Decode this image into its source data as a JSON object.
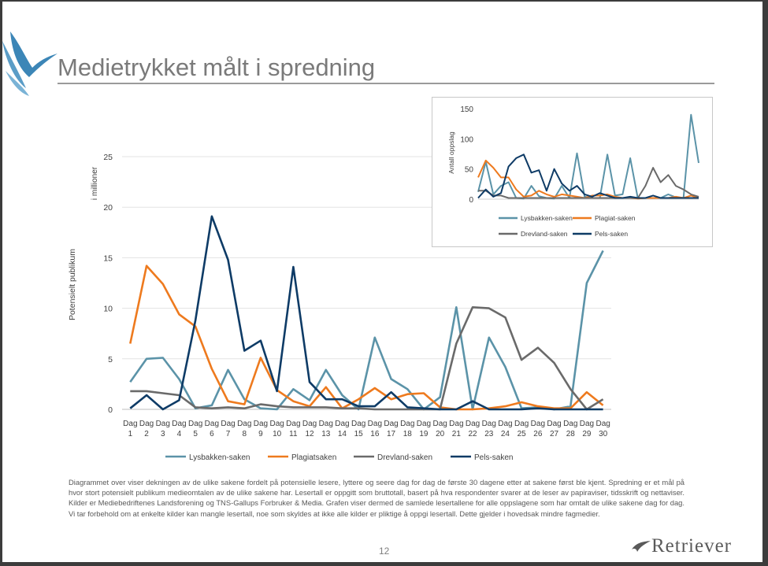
{
  "title": "Medietrykket målt i spredning",
  "page_number": "12",
  "brand": "Retriever",
  "caption": "Diagrammet over viser dekningen av de ulike sakene fordelt på potensielle lesere, lyttere og seere dag for dag de første 30 dagene etter at sakene først ble kjent. Spredning er et mål på hvor stort potensielt publikum medieomtalen av de ulike sakene har. Lesertall er oppgitt som bruttotall, basert på hva respondenter svarer at de leser av papiraviser, tidsskrift og nettaviser. Kilder er Mediebedriftenes Landsforening og TNS-Gallups Forbruker & Media. Grafen viser dermed de samlede lesertallene for alle oppslagene som har omtalt de ulike sakene dag for dag. Vi tar forbehold om at enkelte kilder kan mangle lesertall, noe som skyldes at ikke alle kilder er pliktige å oppgi lesertall. Dette gjelder i hovedsak mindre fagmedier.",
  "colors": {
    "lysbakken": "#5b93a8",
    "plagiat": "#ee7a1e",
    "drevland": "#6a6a6a",
    "pels": "#0e3b66"
  },
  "chart_data": [
    {
      "type": "line",
      "ylabel": "Potensielt publikum",
      "unit_label": "i millioner",
      "ylim": [
        0,
        25
      ],
      "yticks": [
        0,
        5,
        10,
        15,
        20,
        25
      ],
      "grid": true,
      "legend_position": "bottom",
      "categories": [
        "Dag 1",
        "Dag 2",
        "Dag 3",
        "Dag 4",
        "Dag 5",
        "Dag 6",
        "Dag 7",
        "Dag 8",
        "Dag 9",
        "Dag 10",
        "Dag 11",
        "Dag 12",
        "Dag 13",
        "Dag 14",
        "Dag 15",
        "Dag 16",
        "Dag 17",
        "Dag 18",
        "Dag 19",
        "Dag 20",
        "Dag 21",
        "Dag 22",
        "Dag 23",
        "Dag 24",
        "Dag 25",
        "Dag 26",
        "Dag 27",
        "Dag 28",
        "Dag 29",
        "Dag 30"
      ],
      "series": [
        {
          "name": "Lysbakken-saken",
          "color_key": "lysbakken",
          "values": [
            2.7,
            5.0,
            5.1,
            3.0,
            0.1,
            0.4,
            3.9,
            1.0,
            0.1,
            0.0,
            2.0,
            0.9,
            3.9,
            1.4,
            0.0,
            7.1,
            3.0,
            2.0,
            0.0,
            1.2,
            10.1,
            0.0,
            7.1,
            4.2,
            0.1,
            0.2,
            0.0,
            0.3,
            12.5,
            15.7
          ]
        },
        {
          "name": "Plagiatsaken",
          "color_key": "plagiat",
          "values": [
            6.5,
            14.2,
            12.4,
            9.4,
            8.2,
            4.0,
            0.8,
            0.5,
            5.1,
            1.9,
            0.8,
            0.3,
            2.2,
            0.1,
            1.0,
            2.1,
            1.0,
            1.5,
            1.6,
            0.2,
            0.0,
            0.0,
            0.1,
            0.3,
            0.7,
            0.3,
            0.1,
            0.1,
            1.7,
            0.4
          ]
        },
        {
          "name": "Drevland-saken",
          "color_key": "drevland",
          "values": [
            1.8,
            1.8,
            1.6,
            1.4,
            0.2,
            0.1,
            0.2,
            0.1,
            0.5,
            0.3,
            0.2,
            0.2,
            0.2,
            0.1,
            0.1,
            0.0,
            0.0,
            0.0,
            0.0,
            0.0,
            6.5,
            10.1,
            10.0,
            9.1,
            4.9,
            6.1,
            4.6,
            2.0,
            0.0,
            1.0
          ]
        },
        {
          "name": "Pels-saken",
          "color_key": "pels",
          "values": [
            0.1,
            1.4,
            0.0,
            0.9,
            8.8,
            19.1,
            14.8,
            5.8,
            6.8,
            1.8,
            14.1,
            2.7,
            1.0,
            1.0,
            0.3,
            0.3,
            1.7,
            0.2,
            0.1,
            0.0,
            0.0,
            0.8,
            0.0,
            0.0,
            0.0,
            0.1,
            0.0,
            0.0,
            0.0,
            0.0
          ]
        }
      ]
    },
    {
      "type": "line",
      "ylabel": "Antall oppslag",
      "ylim": [
        0,
        150
      ],
      "yticks": [
        0,
        50,
        100,
        150
      ],
      "grid": false,
      "legend_position": "bottom",
      "series": [
        {
          "name": "Lysbakken-saken",
          "color_key": "lysbakken",
          "values": [
            12,
            62,
            8,
            22,
            28,
            2,
            1,
            22,
            5,
            2,
            1,
            22,
            2,
            76,
            4,
            2,
            2,
            74,
            6,
            8,
            68,
            1,
            2,
            2,
            2,
            8,
            3,
            2,
            140,
            60
          ]
        },
        {
          "name": "Plagiat-saken",
          "color_key": "plagiat",
          "values": [
            36,
            64,
            52,
            36,
            36,
            16,
            4,
            6,
            14,
            8,
            4,
            8,
            6,
            4,
            2,
            6,
            6,
            8,
            4,
            2,
            2,
            1,
            2,
            2,
            2,
            2,
            4,
            2,
            6,
            2
          ]
        },
        {
          "name": "Drevland-saken",
          "color_key": "drevland",
          "values": [
            14,
            14,
            6,
            6,
            2,
            2,
            2,
            2,
            2,
            2,
            2,
            2,
            2,
            2,
            2,
            2,
            2,
            2,
            2,
            2,
            2,
            2,
            22,
            52,
            28,
            40,
            22,
            16,
            8,
            4
          ]
        },
        {
          "name": "Pels-saken",
          "color_key": "pels",
          "values": [
            2,
            16,
            4,
            10,
            54,
            68,
            74,
            44,
            48,
            14,
            50,
            26,
            14,
            22,
            8,
            4,
            10,
            6,
            2,
            2,
            4,
            2,
            2,
            6,
            2,
            2,
            2,
            2,
            2,
            2
          ]
        }
      ]
    }
  ]
}
